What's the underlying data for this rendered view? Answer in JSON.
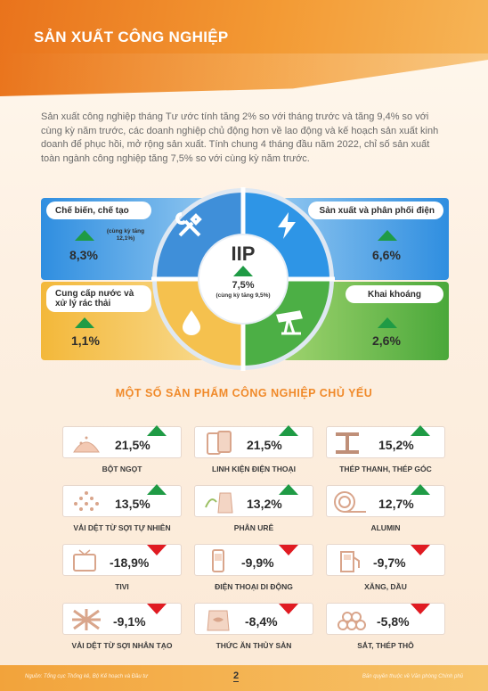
{
  "title": "SẢN XUẤT CÔNG NGHIỆP",
  "intro": "Sản xuất công nghiệp tháng Tư ước tính tăng 2% so với tháng trước và tăng 9,4% so với cùng kỳ năm trước, các doanh nghiệp chủ động hơn về lao động và kế hoạch sản xuất kinh doanh để phục hồi, mở rộng sản xuất. Tính chung 4 tháng đầu năm 2022, chỉ số sản xuất toàn ngành công nghiệp tăng 7,5% so với cùng kỳ năm trước.",
  "iip": {
    "center": {
      "label": "IIP",
      "value": "7,5%",
      "sub": "(cùng kỳ tăng 9,5%)"
    },
    "cards": [
      {
        "label": "Chế biến, chế tạo",
        "value": "8,3%",
        "sub": "(cùng kỳ tăng 12,1%)"
      },
      {
        "label": "Sản xuất và phân phối điện",
        "value": "6,6%"
      },
      {
        "label": "Cung cấp nước và xử lý rác thải",
        "value": "1,1%"
      },
      {
        "label": "Khai khoáng",
        "value": "2,6%"
      }
    ]
  },
  "products_title": "MỘT SỐ SẢN PHẨM CÔNG NGHIỆP CHỦ YẾU",
  "products": [
    {
      "name": "BỘT NGỌT",
      "value": "21,5%",
      "trend": "up"
    },
    {
      "name": "LINH KIỆN ĐIỆN THOẠI",
      "value": "21,5%",
      "trend": "up"
    },
    {
      "name": "THÉP THANH, THÉP GÓC",
      "value": "15,2%",
      "trend": "up"
    },
    {
      "name": "VẢI DỆT TỪ SỢI TỰ NHIÊN",
      "value": "13,5%",
      "trend": "up"
    },
    {
      "name": "PHÂN URÊ",
      "value": "13,2%",
      "trend": "up"
    },
    {
      "name": "ALUMIN",
      "value": "12,7%",
      "trend": "up"
    },
    {
      "name": "TIVI",
      "value": "-18,9%",
      "trend": "down"
    },
    {
      "name": "ĐIỆN THOẠI DI ĐỘNG",
      "value": "-9,9%",
      "trend": "down"
    },
    {
      "name": "XĂNG, DẦU",
      "value": "-9,7%",
      "trend": "down"
    },
    {
      "name": "VẢI DỆT TỪ SỢI NHÂN TẠO",
      "value": "-9,1%",
      "trend": "down"
    },
    {
      "name": "THỨC ĂN THỦY SẢN",
      "value": "-8,4%",
      "trend": "down"
    },
    {
      "name": "SẮT, THÉP THÔ",
      "value": "-5,8%",
      "trend": "down"
    }
  ],
  "footer": {
    "source": "Nguồn: Tổng cục Thống kê, Bộ Kế hoạch và Đầu tư",
    "page": "2",
    "copyright": "Bản quyền thuộc về Văn phòng Chính phủ"
  },
  "colors": {
    "accent": "#f08a2a",
    "up": "#1f9b45",
    "down": "#e01b22"
  }
}
